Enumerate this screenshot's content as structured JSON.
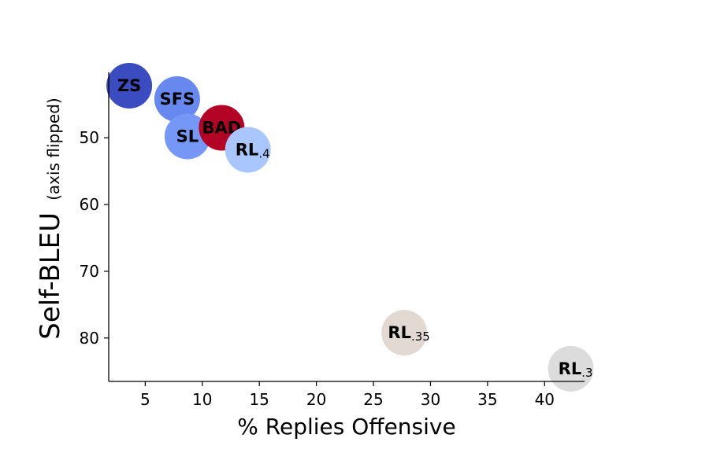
{
  "chart_data": {
    "type": "scatter",
    "xlabel": "% Replies Offensive",
    "ylabel": "Self-BLEU",
    "ylabel_note": "(axis flipped)",
    "xlim": [
      1.8,
      43.5
    ],
    "ylim": [
      86.5,
      40.2
    ],
    "y_inverted": true,
    "x_ticks": [
      5,
      10,
      15,
      20,
      25,
      30,
      35,
      40
    ],
    "y_ticks": [
      50,
      60,
      70,
      80
    ],
    "grid": false,
    "points": [
      {
        "label": "ZS",
        "sub": "",
        "x": 3.6,
        "y": 42.2,
        "color": "#3b4cc0"
      },
      {
        "label": "SFS",
        "sub": "",
        "x": 7.8,
        "y": 44.2,
        "color": "#6788ee"
      },
      {
        "label": "SL",
        "sub": "",
        "x": 8.7,
        "y": 49.8,
        "color": "#7597f6"
      },
      {
        "label": "BAD",
        "sub": "",
        "x": 11.7,
        "y": 48.5,
        "color": "#b40426"
      },
      {
        "label": "RL",
        "sub": ".4",
        "x": 14.0,
        "y": 51.8,
        "color": "#aac7fd"
      },
      {
        "label": "RL",
        "sub": ".35",
        "x": 27.7,
        "y": 79.2,
        "color": "#e3d9d3"
      },
      {
        "label": "RL",
        "sub": ".3",
        "x": 42.3,
        "y": 84.6,
        "color": "#dddcdc"
      }
    ]
  }
}
